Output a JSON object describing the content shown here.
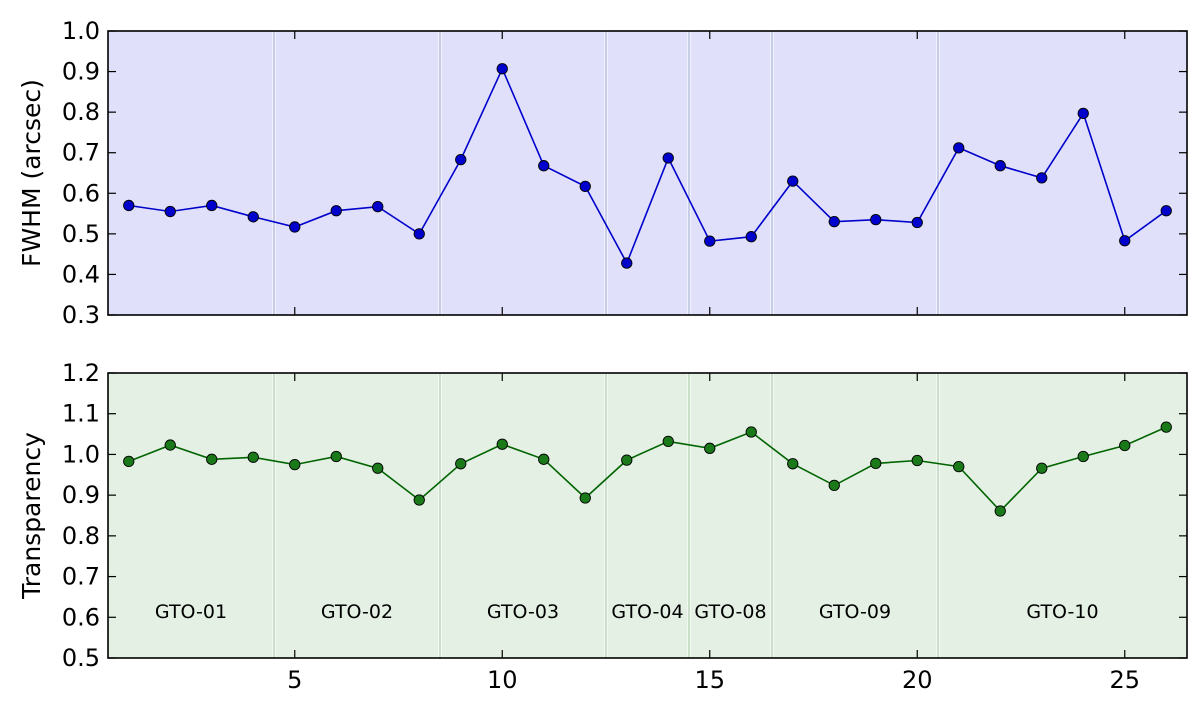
{
  "chart_data": [
    {
      "type": "line",
      "ylabel": "FWHM (arcsec)",
      "xlabel": "",
      "ylim": [
        0.3,
        1.0
      ],
      "yticks": [
        "0.3",
        "0.4",
        "0.5",
        "0.6",
        "0.7",
        "0.8",
        "0.9",
        "1.0"
      ],
      "xlim": [
        0.5,
        26.5
      ],
      "xticks": [
        "5",
        "10",
        "15",
        "20",
        "25"
      ],
      "xtick_labels_visible": false,
      "background_color": "#e0e0fa",
      "line_color": "#0000cc",
      "marker_color": "#0000cc",
      "series": [
        {
          "x": [
            1,
            2,
            3,
            4,
            5,
            6,
            7,
            8,
            9,
            10,
            11,
            12,
            13,
            14,
            15,
            16,
            17,
            18,
            19,
            20,
            21,
            22,
            23,
            24,
            25,
            26
          ],
          "values": [
            0.57,
            0.555,
            0.57,
            0.542,
            0.517,
            0.557,
            0.567,
            0.5,
            0.683,
            0.907,
            0.668,
            0.617,
            0.428,
            0.687,
            0.482,
            0.493,
            0.63,
            0.53,
            0.535,
            0.528,
            0.712,
            0.668,
            0.638,
            0.797,
            0.483,
            0.557
          ]
        }
      ],
      "group_boundaries": [
        4.5,
        8.5,
        12.5,
        14.5,
        16.5,
        20.5
      ]
    },
    {
      "type": "line",
      "ylabel": "Transparency",
      "xlabel": "",
      "ylim": [
        0.5,
        1.2
      ],
      "yticks": [
        "0.5",
        "0.6",
        "0.7",
        "0.8",
        "0.9",
        "1.0",
        "1.1",
        "1.2"
      ],
      "xlim": [
        0.5,
        26.5
      ],
      "xticks": [
        "5",
        "10",
        "15",
        "20",
        "25"
      ],
      "xtick_labels_visible": true,
      "background_color": "#e3f0e3",
      "line_color": "#006400",
      "marker_color": "#1a7a1a",
      "series": [
        {
          "x": [
            1,
            2,
            3,
            4,
            5,
            6,
            7,
            8,
            9,
            10,
            11,
            12,
            13,
            14,
            15,
            16,
            17,
            18,
            19,
            20,
            21,
            22,
            23,
            24,
            25,
            26
          ],
          "values": [
            0.983,
            1.023,
            0.988,
            0.993,
            0.975,
            0.995,
            0.966,
            0.888,
            0.977,
            1.025,
            0.988,
            0.893,
            0.986,
            1.032,
            1.015,
            1.055,
            0.977,
            0.924,
            0.978,
            0.985,
            0.97,
            0.861,
            0.966,
            0.995,
            1.022,
            1.067
          ]
        }
      ],
      "group_boundaries": [
        4.5,
        8.5,
        12.5,
        14.5,
        16.5,
        20.5
      ],
      "annotations": [
        {
          "text": "GTO-01",
          "x": 2.5,
          "y": 0.615
        },
        {
          "text": "GTO-02",
          "x": 6.5,
          "y": 0.615
        },
        {
          "text": "GTO-03",
          "x": 10.5,
          "y": 0.615
        },
        {
          "text": "GTO-04",
          "x": 13.5,
          "y": 0.615
        },
        {
          "text": "GTO-08",
          "x": 15.5,
          "y": 0.615
        },
        {
          "text": "GTO-09",
          "x": 18.5,
          "y": 0.615
        },
        {
          "text": "GTO-10",
          "x": 23.5,
          "y": 0.615
        }
      ]
    }
  ]
}
